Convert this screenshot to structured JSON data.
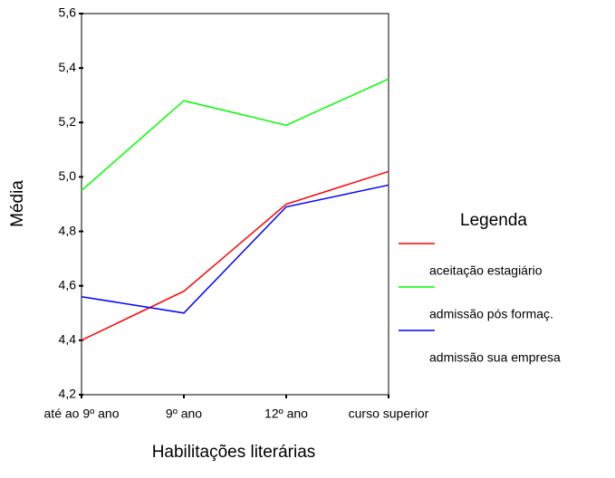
{
  "chart_data": {
    "type": "line",
    "x_label": "Habilitações literárias",
    "y_label": "Média",
    "legend_title": "Legenda",
    "categories": [
      "até ao 9º ano",
      "9º ano",
      "12º ano",
      "curso superior"
    ],
    "series": [
      {
        "name": "aceitação estagiário",
        "color": "#ff0000",
        "values": [
          4.4,
          4.58,
          4.9,
          5.02
        ]
      },
      {
        "name": "admissão pós formaç.",
        "color": "#00ff00",
        "values": [
          4.95,
          5.28,
          5.19,
          5.36
        ]
      },
      {
        "name": "admissão sua empresa",
        "color": "#0000ff",
        "values": [
          4.56,
          4.5,
          4.89,
          4.97
        ]
      }
    ],
    "ylim": [
      4.2,
      5.6
    ],
    "yticks": [
      {
        "value": 4.2,
        "label": "4,2"
      },
      {
        "value": 4.4,
        "label": "4,4"
      },
      {
        "value": 4.6,
        "label": "4,6"
      },
      {
        "value": 4.8,
        "label": "4,8"
      },
      {
        "value": 5.0,
        "label": "5,0"
      },
      {
        "value": 5.2,
        "label": "5,2"
      },
      {
        "value": 5.4,
        "label": "5,4"
      },
      {
        "value": 5.6,
        "label": "5,6"
      }
    ],
    "grid": false
  }
}
